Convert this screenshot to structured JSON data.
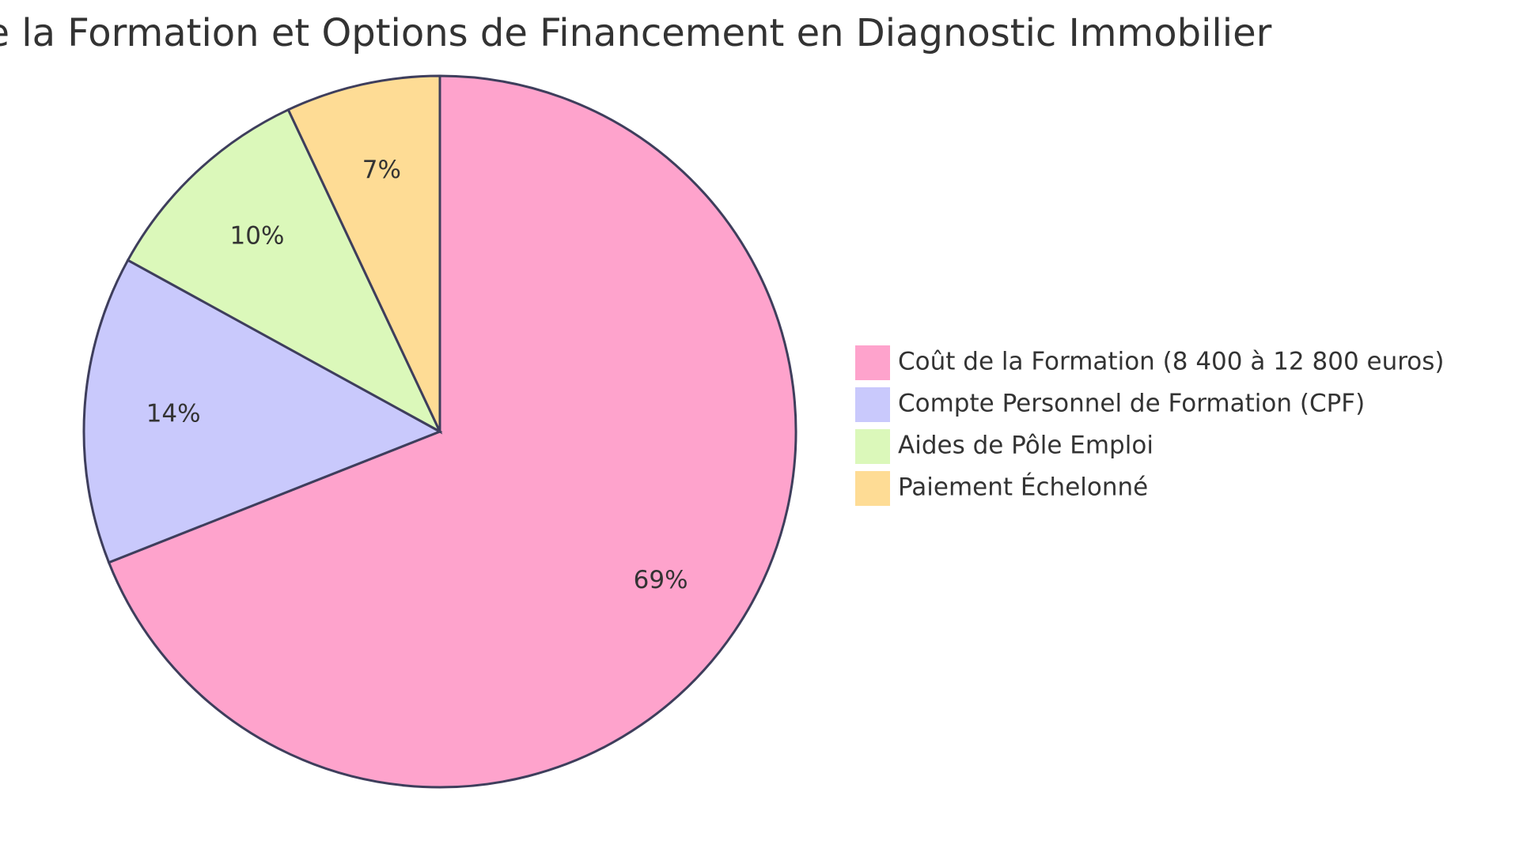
{
  "chart_data": {
    "type": "pie",
    "title": "Coût de la Formation et Options de Financement en Diagnostic Immobilier",
    "slices": [
      {
        "label": "Coût de la Formation (8 400 à 12 800 euros)",
        "value": 69,
        "value_label": "69%",
        "color": "#fea3cc"
      },
      {
        "label": "Compte Personnel de Formation (CPF)",
        "value": 14,
        "value_label": "14%",
        "color": "#c9c9fc"
      },
      {
        "label": "Aides de Pôle Emploi",
        "value": 10,
        "value_label": "10%",
        "color": "#dbf8ba"
      },
      {
        "label": "Paiement Échelonné",
        "value": 7,
        "value_label": "7%",
        "color": "#fedc95"
      }
    ],
    "legend_position": "right",
    "start_angle": "top, clockwise",
    "stroke_color": "#3e3e5c"
  }
}
